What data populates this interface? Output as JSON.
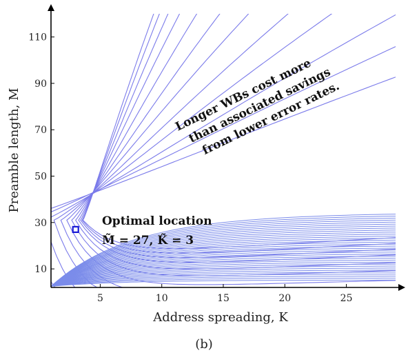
{
  "chart_data": {
    "type": "contour",
    "title": "",
    "xlabel": "Address spreading, K",
    "ylabel": "Preamble length, M",
    "xlim": [
      1,
      29
    ],
    "ylim": [
      2,
      120
    ],
    "xticks": [
      5,
      10,
      15,
      20,
      25
    ],
    "yticks": [
      10,
      30,
      50,
      70,
      90,
      110
    ],
    "optimum": {
      "K": 3,
      "M": 27
    },
    "annotations": {
      "optimal_line1": "Optimal location",
      "optimal_line2": "M̃ = 27, K̃ = 3",
      "wb_line1": "Longer WBs cost more",
      "wb_line2": "than associated savings",
      "wb_line3": "from lower error rates."
    },
    "colors": {
      "contour": "#7b7bea",
      "marker": "#1a1ad6",
      "dense_low": "#6fd6c8"
    }
  },
  "caption": "(b)"
}
